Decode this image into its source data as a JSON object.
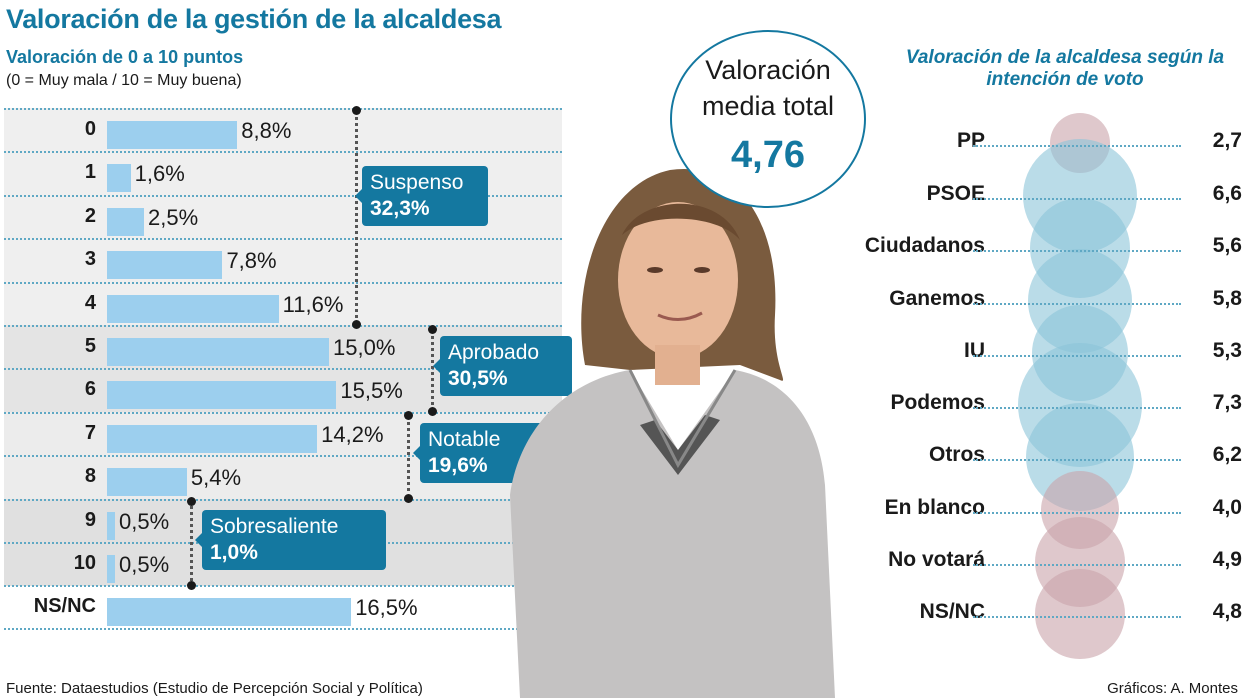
{
  "title": "Valoración de la gestión de la alcaldesa",
  "left_chart": {
    "subtitle": "Valoración de 0 a 10 puntos",
    "note": "(0 = Muy mala / 10 = Muy buena)",
    "rows": [
      {
        "label": "0",
        "value": 8.8,
        "text": "8,8%"
      },
      {
        "label": "1",
        "value": 1.6,
        "text": "1,6%"
      },
      {
        "label": "2",
        "value": 2.5,
        "text": "2,5%"
      },
      {
        "label": "3",
        "value": 7.8,
        "text": "7,8%"
      },
      {
        "label": "4",
        "value": 11.6,
        "text": "11,6%"
      },
      {
        "label": "5",
        "value": 15.0,
        "text": "15,0%"
      },
      {
        "label": "6",
        "value": 15.5,
        "text": "15,5%"
      },
      {
        "label": "7",
        "value": 14.2,
        "text": "14,2%"
      },
      {
        "label": "8",
        "value": 5.4,
        "text": "5,4%"
      },
      {
        "label": "9",
        "value": 0.5,
        "text": "0,5%"
      },
      {
        "label": "10",
        "value": 0.5,
        "text": "0,5%"
      },
      {
        "label": "NS/NC",
        "value": 16.5,
        "text": "16,5%"
      }
    ],
    "groups": [
      {
        "name": "Suspenso",
        "value": "32,3%"
      },
      {
        "name": "Aprobado",
        "value": "30,5%"
      },
      {
        "name": "Notable",
        "value": "19,6%"
      },
      {
        "name": "Sobresaliente",
        "value": "1,0%"
      }
    ]
  },
  "mean": {
    "label": "Valoración media total",
    "value": "4,76"
  },
  "right_chart": {
    "title": "Valoración de la alcaldesa según la intención de voto",
    "rows": [
      {
        "party": "PP",
        "value": 2.7,
        "text": "2,7",
        "color": "#c9a3aa"
      },
      {
        "party": "PSOE",
        "value": 6.6,
        "text": "6,6",
        "color": "#8cc4d8"
      },
      {
        "party": "Ciudadanos",
        "value": 5.6,
        "text": "5,6",
        "color": "#8cc4d8"
      },
      {
        "party": "Ganemos",
        "value": 5.8,
        "text": "5,8",
        "color": "#8cc4d8"
      },
      {
        "party": "IU",
        "value": 5.3,
        "text": "5,3",
        "color": "#8cc4d8"
      },
      {
        "party": "Podemos",
        "value": 7.3,
        "text": "7,3",
        "color": "#8cc4d8"
      },
      {
        "party": "Otros",
        "value": 6.2,
        "text": "6,2",
        "color": "#8cc4d8"
      },
      {
        "party": "En blanco",
        "value": 4.0,
        "text": "4,0",
        "color": "#c9a3aa"
      },
      {
        "party": "No votará",
        "value": 4.9,
        "text": "4,9",
        "color": "#c9a3aa"
      },
      {
        "party": "NS/NC",
        "value": 4.8,
        "text": "4,8",
        "color": "#c9a3aa"
      }
    ]
  },
  "footer": {
    "source": "Fuente: Dataestudios (Estudio de Percepción Social y Política)",
    "credit": "Gráficos: A. Montes"
  },
  "colors": {
    "accent": "#1478a0",
    "bar": "#9ccfee",
    "bubble_blue": "#8cc4d8",
    "bubble_pink": "#c9a3aa"
  },
  "chart_data": [
    {
      "type": "bar",
      "title": "Valoración de 0 a 10 puntos",
      "subtitle": "(0 = Muy mala / 10 = Muy buena)",
      "orientation": "horizontal",
      "categories": [
        "0",
        "1",
        "2",
        "3",
        "4",
        "5",
        "6",
        "7",
        "8",
        "9",
        "10",
        "NS/NC"
      ],
      "values": [
        8.8,
        1.6,
        2.5,
        7.8,
        11.6,
        15.0,
        15.5,
        14.2,
        5.4,
        0.5,
        0.5,
        16.5
      ],
      "unit": "%",
      "annotations": [
        {
          "label": "Suspenso",
          "range": [
            "0",
            "4"
          ],
          "value": 32.3
        },
        {
          "label": "Aprobado",
          "range": [
            "5",
            "6"
          ],
          "value": 30.5
        },
        {
          "label": "Notable",
          "range": [
            "7",
            "8"
          ],
          "value": 19.6
        },
        {
          "label": "Sobresaliente",
          "range": [
            "9",
            "10"
          ],
          "value": 1.0
        }
      ],
      "xlabel": "",
      "ylabel": ""
    },
    {
      "type": "scatter",
      "subtype": "bubble",
      "title": "Valoración de la alcaldesa según la intención de voto",
      "categories": [
        "PP",
        "PSOE",
        "Ciudadanos",
        "Ganemos",
        "IU",
        "Podemos",
        "Otros",
        "En blanco",
        "No votará",
        "NS/NC"
      ],
      "values": [
        2.7,
        6.6,
        5.6,
        5.8,
        5.3,
        7.3,
        6.2,
        4.0,
        4.9,
        4.8
      ],
      "annotations": [
        {
          "label": "Valoración media total",
          "value": 4.76
        }
      ]
    }
  ]
}
